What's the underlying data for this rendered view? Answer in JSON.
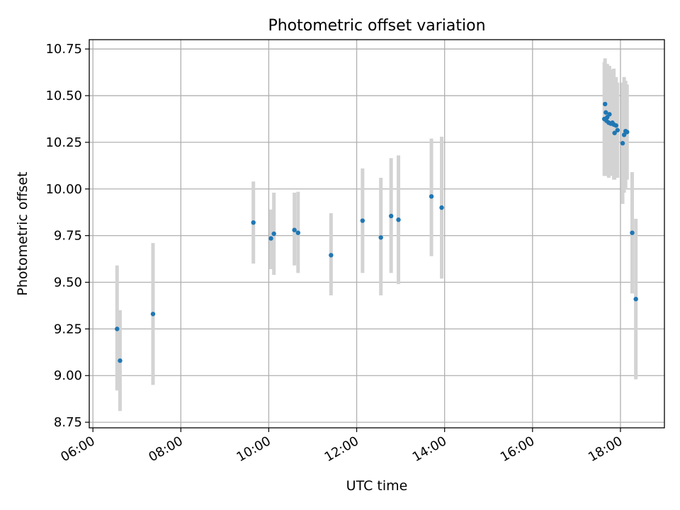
{
  "chart_data": {
    "type": "scatter",
    "title": "Photometric offset variation",
    "xlabel": "UTC time",
    "ylabel": "Photometric offset",
    "xlim": [
      "05:55",
      "19:00"
    ],
    "ylim": [
      8.72,
      10.8
    ],
    "x_ticks": [
      "06:00",
      "08:00",
      "10:00",
      "12:00",
      "14:00",
      "16:00",
      "18:00"
    ],
    "y_ticks": [
      "8.75",
      "9.00",
      "9.25",
      "9.50",
      "9.75",
      "10.00",
      "10.25",
      "10.50",
      "10.75"
    ],
    "grid": true,
    "legend": "none",
    "colors": {
      "points": "#1f77b4",
      "error_bars": "#d3d3d3",
      "grid": "#b0b0b0"
    },
    "series": [
      {
        "points": [
          {
            "x": "06:33",
            "y": 9.25,
            "ylow": 8.92,
            "yhigh": 9.59
          },
          {
            "x": "06:37",
            "y": 9.08,
            "ylow": 8.81,
            "yhigh": 9.35
          },
          {
            "x": "07:22",
            "y": 9.33,
            "ylow": 8.95,
            "yhigh": 9.71
          },
          {
            "x": "09:39",
            "y": 9.82,
            "ylow": 9.6,
            "yhigh": 10.04
          },
          {
            "x": "10:03",
            "y": 9.735,
            "ylow": 9.57,
            "yhigh": 9.89
          },
          {
            "x": "10:07",
            "y": 9.76,
            "ylow": 9.54,
            "yhigh": 9.98
          },
          {
            "x": "10:35",
            "y": 9.78,
            "ylow": 9.59,
            "yhigh": 9.98
          },
          {
            "x": "10:40",
            "y": 9.765,
            "ylow": 9.55,
            "yhigh": 9.985
          },
          {
            "x": "11:25",
            "y": 9.645,
            "ylow": 9.43,
            "yhigh": 9.87
          },
          {
            "x": "12:08",
            "y": 9.83,
            "ylow": 9.55,
            "yhigh": 10.11
          },
          {
            "x": "12:33",
            "y": 9.74,
            "ylow": 9.43,
            "yhigh": 10.06
          },
          {
            "x": "12:47",
            "y": 9.855,
            "ylow": 9.55,
            "yhigh": 10.165
          },
          {
            "x": "12:57",
            "y": 9.835,
            "ylow": 9.49,
            "yhigh": 10.18
          },
          {
            "x": "13:42",
            "y": 9.96,
            "ylow": 9.64,
            "yhigh": 10.27
          },
          {
            "x": "13:56",
            "y": 9.9,
            "ylow": 9.52,
            "yhigh": 10.28
          },
          {
            "x": "17:38",
            "y": 10.375,
            "ylow": 10.07,
            "yhigh": 10.68
          },
          {
            "x": "17:39",
            "y": 10.455,
            "ylow": 10.21,
            "yhigh": 10.7
          },
          {
            "x": "17:40",
            "y": 10.41,
            "ylow": 10.15,
            "yhigh": 10.67
          },
          {
            "x": "17:41",
            "y": 10.365,
            "ylow": 10.07,
            "yhigh": 10.66
          },
          {
            "x": "17:42",
            "y": 10.385,
            "ylow": 10.1,
            "yhigh": 10.67
          },
          {
            "x": "17:44",
            "y": 10.355,
            "ylow": 10.06,
            "yhigh": 10.65
          },
          {
            "x": "17:45",
            "y": 10.4,
            "ylow": 10.13,
            "yhigh": 10.66
          },
          {
            "x": "17:47",
            "y": 10.35,
            "ylow": 10.07,
            "yhigh": 10.64
          },
          {
            "x": "17:49",
            "y": 10.355,
            "ylow": 10.08,
            "yhigh": 10.635
          },
          {
            "x": "17:51",
            "y": 10.345,
            "ylow": 10.05,
            "yhigh": 10.645
          },
          {
            "x": "17:52",
            "y": 10.3,
            "ylow": 10.05,
            "yhigh": 10.55
          },
          {
            "x": "17:54",
            "y": 10.34,
            "ylow": 10.07,
            "yhigh": 10.6
          },
          {
            "x": "17:56",
            "y": 10.315,
            "ylow": 10.06,
            "yhigh": 10.57
          },
          {
            "x": "18:03",
            "y": 10.245,
            "ylow": 9.92,
            "yhigh": 10.57
          },
          {
            "x": "18:05",
            "y": 10.29,
            "ylow": 9.98,
            "yhigh": 10.6
          },
          {
            "x": "18:07",
            "y": 10.31,
            "ylow": 10.0,
            "yhigh": 10.58
          },
          {
            "x": "18:09",
            "y": 10.305,
            "ylow": 10.05,
            "yhigh": 10.56
          },
          {
            "x": "18:16",
            "y": 9.765,
            "ylow": 9.44,
            "yhigh": 10.09
          },
          {
            "x": "18:21",
            "y": 9.41,
            "ylow": 8.98,
            "yhigh": 9.84
          }
        ]
      }
    ]
  }
}
